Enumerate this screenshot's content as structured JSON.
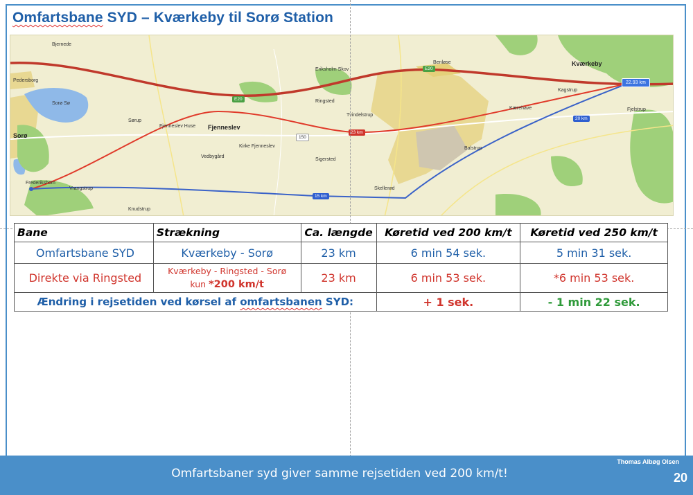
{
  "title": {
    "squiggle_word": "Omfartsbane",
    "rest": " SYD – Kværkeby til Sorø Station"
  },
  "map": {
    "towns": {
      "soro": "Sorø",
      "fjenneslev": "Fjenneslev",
      "kvaerkeby": "Kværkeby",
      "frederikshom": "Frederikshom",
      "pedersborg": "Pedersborg",
      "benlose": "Benløse"
    },
    "places": [
      "Bjernede",
      "Sørup",
      "Fjenneslev Huse",
      "Kirke Fjenneslev",
      "Vedbygård",
      "Sigersted",
      "Ringsted",
      "Tvindelstrup",
      "Skellerød",
      "Eriksholm Skov",
      "Balstrup",
      "Kagstrup",
      "Kærehave",
      "Fjelstrup",
      "Knudstrup",
      "Vrangstrup",
      "Sorø Sø"
    ],
    "route_tags": {
      "red": "23 km",
      "blue_lower": "15 km",
      "blue_right": "20 km",
      "distance_box": "22.93 km"
    },
    "road_labels": [
      "E20",
      "E20",
      "150"
    ],
    "colors": {
      "road_red": "#c0392b",
      "route_red": "#e03a2a",
      "route_blue": "#3a62c8",
      "urban": "#e8d892",
      "forest": "#9fd07a",
      "water": "#8fb9e8"
    }
  },
  "table": {
    "headers": [
      "Bane",
      "Strækning",
      "Ca. længde",
      "Køretid ved 200 km/t",
      "Køretid ved 250 km/t"
    ],
    "row1": {
      "bane": "Omfartsbane SYD",
      "straekning": "Kværkeby - Sorø",
      "laengde": "23 km",
      "t200": "6 min 54 sek.",
      "t250": "5 min 31 sek."
    },
    "row2": {
      "bane": "Direkte via Ringsted",
      "straekning_line1": "Kværkeby - Ringsted - Sorø",
      "straekning_prefix": "kun ",
      "straekning_bold": "*200 km/t",
      "laengde": "23 km",
      "t200": "6 min 53 sek.",
      "t250": "*6 min 53 sek."
    },
    "summary": {
      "label_pre": "Ændring i rejsetiden ved kørsel af ",
      "label_squiggle": "omfartsbanen",
      "label_post": " SYD:",
      "t200": "+ 1 sek.",
      "t250": "- 1 min 22 sek."
    }
  },
  "footer": {
    "text": "Omfartsbaner syd giver samme rejsetiden ved 200 km/t!",
    "author": "Thomas Albøg Olsen",
    "page_number": "20"
  }
}
